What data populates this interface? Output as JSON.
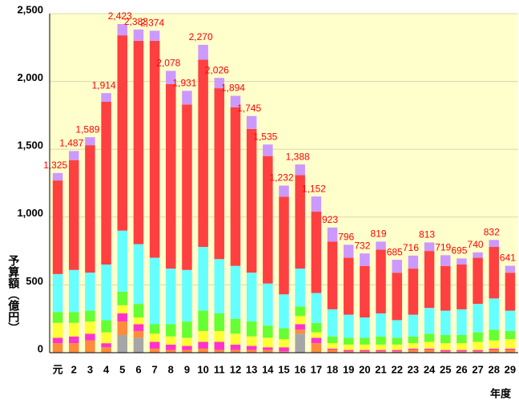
{
  "chart_data": {
    "type": "stacked_bar",
    "ylabel": "予算額（億円）",
    "xlabel": "年度",
    "categories": [
      "元",
      "2",
      "3",
      "4",
      "5",
      "6",
      "7",
      "8",
      "9",
      "10",
      "11",
      "12",
      "13",
      "14",
      "15",
      "16",
      "17",
      "18",
      "19",
      "20",
      "21",
      "22",
      "23",
      "24",
      "25",
      "26",
      "27",
      "28",
      "29"
    ],
    "ylim": [
      0,
      2500
    ],
    "yticks": [
      0,
      {
        "value": 500,
        "label": "500"
      },
      {
        "value": 1000,
        "label": "1,000"
      },
      {
        "value": 1500,
        "label": "1,500"
      },
      {
        "value": 2000,
        "label": "2,000"
      },
      {
        "value": 2500,
        "label": "2,500"
      }
    ],
    "grid": true,
    "background": "#ffffcc",
    "series": [
      {
        "color": "#a6a6a6",
        "values": [
          0,
          0,
          0,
          0,
          130,
          110,
          0,
          0,
          0,
          0,
          0,
          0,
          0,
          0,
          0,
          140,
          0,
          0,
          0,
          0,
          0,
          0,
          0,
          0,
          0,
          0,
          0,
          0,
          0
        ]
      },
      {
        "color": "#ff8c3a",
        "values": [
          70,
          70,
          90,
          40,
          100,
          50,
          30,
          20,
          20,
          30,
          20,
          20,
          20,
          20,
          10,
          30,
          70,
          20,
          10,
          10,
          10,
          10,
          20,
          20,
          10,
          10,
          10,
          20,
          20
        ]
      },
      {
        "color": "#ff33cc",
        "values": [
          40,
          50,
          50,
          30,
          60,
          50,
          50,
          40,
          30,
          50,
          60,
          40,
          30,
          20,
          30,
          40,
          40,
          10,
          10,
          10,
          10,
          10,
          10,
          10,
          10,
          10,
          10,
          10,
          10
        ]
      },
      {
        "color": "#ffff33",
        "values": [
          110,
          100,
          90,
          80,
          60,
          50,
          60,
          60,
          60,
          80,
          80,
          80,
          70,
          70,
          60,
          60,
          40,
          40,
          40,
          40,
          40,
          40,
          40,
          50,
          50,
          50,
          60,
          60,
          70
        ]
      },
      {
        "color": "#66ff33",
        "values": [
          80,
          80,
          80,
          90,
          100,
          100,
          70,
          90,
          120,
          150,
          130,
          110,
          110,
          90,
          80,
          70,
          70,
          50,
          50,
          50,
          60,
          50,
          50,
          60,
          60,
          60,
          70,
          80,
          60
        ]
      },
      {
        "color": "#66ffff",
        "values": [
          280,
          310,
          280,
          410,
          450,
          440,
          490,
          410,
          380,
          470,
          400,
          390,
          360,
          310,
          250,
          280,
          220,
          200,
          170,
          150,
          170,
          130,
          160,
          190,
          180,
          190,
          210,
          230,
          150
        ]
      },
      {
        "color": "#ff4040",
        "values": [
          690,
          810,
          940,
          1200,
          1440,
          1500,
          1600,
          1360,
          1220,
          1380,
          1260,
          1170,
          1060,
          940,
          720,
          690,
          600,
          500,
          420,
          380,
          470,
          350,
          340,
          420,
          330,
          330,
          340,
          380,
          280
        ]
      },
      {
        "color": "#cc99ff",
        "values": [
          55,
          67,
          59,
          64,
          83,
          83,
          74,
          98,
          101,
          110,
          76,
          84,
          95,
          85,
          82,
          78,
          112,
          103,
          96,
          92,
          59,
          95,
          96,
          63,
          79,
          45,
          40,
          52,
          51
        ]
      }
    ],
    "totals": [
      1325,
      1487,
      1589,
      1914,
      2423,
      2383,
      2374,
      2078,
      1931,
      2270,
      2026,
      1894,
      1745,
      1535,
      1232,
      1388,
      1152,
      923,
      796,
      732,
      819,
      685,
      716,
      813,
      719,
      695,
      740,
      832,
      641
    ],
    "total_labels": [
      "1,325",
      "1,487",
      "1,589",
      "1,914",
      "2,423",
      "2,383",
      "2,374",
      "2,078",
      "1,931",
      "2,270",
      "2,026",
      "1,894",
      "1,745",
      "1,535",
      "1,232",
      "1,388",
      "1,152",
      "923",
      "796",
      "732",
      "819",
      "685",
      "716",
      "813",
      "719",
      "695",
      "740",
      "832",
      "641"
    ]
  }
}
